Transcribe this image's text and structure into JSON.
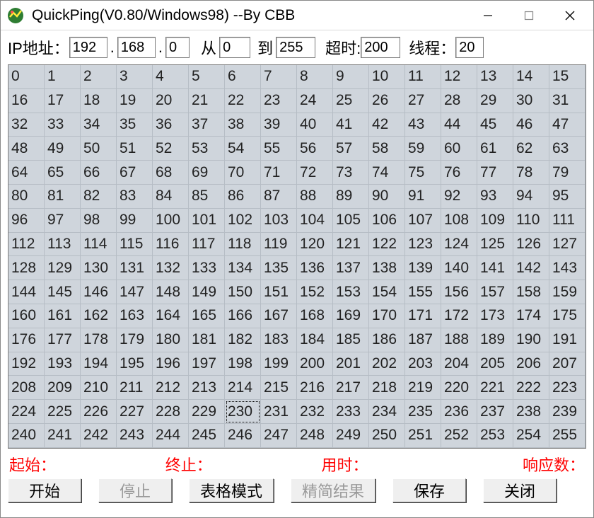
{
  "window": {
    "title": "QuickPing(V0.80/Windows98) --By CBB"
  },
  "inputs": {
    "ip_label": "IP地址：",
    "octet1": "192",
    "octet2": "168",
    "octet3": "0",
    "from_label": "从",
    "from_value": "0",
    "to_label": "到",
    "to_value": "255",
    "timeout_label": "超时:",
    "timeout_value": "200",
    "threads_label": "线程：",
    "threads_value": "20"
  },
  "grid": {
    "columns": 16,
    "start": 0,
    "end": 255,
    "cell_bg": "#cfd5dc",
    "cell_border": "#b6bdc5",
    "text_color": "#222222",
    "selected_index": 230
  },
  "status": {
    "start_label": "起始：",
    "end_label": "终止：",
    "elapsed_label": "用时：",
    "responses_label": "响应数：",
    "color": "#ff0000"
  },
  "buttons": {
    "start": "开始",
    "stop": "停止",
    "table_mode": "表格模式",
    "compact": "精简结果",
    "save": "保存",
    "close": "关闭"
  },
  "colors": {
    "window_bg": "#ffffff",
    "input_border": "#7a7a7a",
    "btn_face": "#efefef"
  }
}
